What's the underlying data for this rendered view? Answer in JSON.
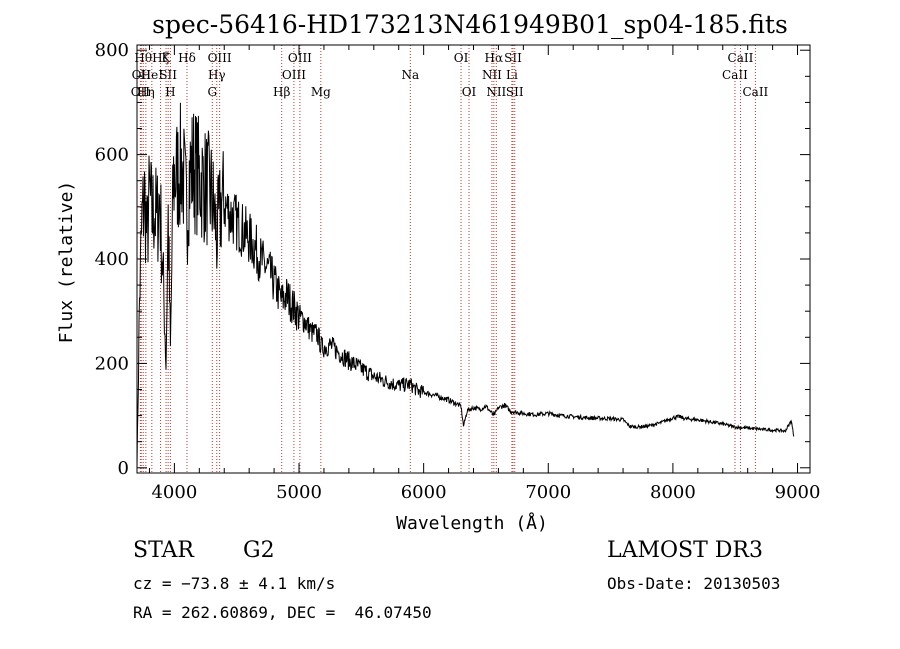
{
  "chart_data": {
    "type": "line",
    "title": "spec-56416-HD173213N461949B01_sp04-185.fits",
    "xlabel": "Wavelength (Å)",
    "ylabel": "Flux (relative)",
    "xlim": [
      3700,
      9100
    ],
    "ylim": [
      -10,
      810
    ],
    "xticks": [
      4000,
      5000,
      6000,
      7000,
      8000,
      9000
    ],
    "xtick_labels": [
      "4000",
      "5000",
      "6000",
      "7000",
      "8000",
      "9000"
    ],
    "yticks": [
      0,
      200,
      400,
      600,
      800
    ],
    "ytick_labels": [
      "0",
      "200",
      "400",
      "600",
      "800"
    ],
    "grid": false,
    "series": [
      {
        "name": "spectrum",
        "x": [
          3700,
          3720,
          3740,
          3760,
          3780,
          3800,
          3820,
          3840,
          3860,
          3880,
          3900,
          3920,
          3933,
          3950,
          3968,
          3990,
          4000,
          4020,
          4040,
          4060,
          4080,
          4101,
          4120,
          4150,
          4200,
          4250,
          4300,
          4330,
          4340,
          4380,
          4400,
          4450,
          4500,
          4550,
          4600,
          4650,
          4700,
          4750,
          4800,
          4861,
          4900,
          4950,
          5000,
          5050,
          5100,
          5150,
          5183,
          5250,
          5300,
          5400,
          5500,
          5600,
          5700,
          5800,
          5893,
          5950,
          6000,
          6100,
          6200,
          6250,
          6300,
          6320,
          6350,
          6400,
          6450,
          6500,
          6563,
          6600,
          6650,
          6700,
          6750,
          6800,
          6900,
          7000,
          7100,
          7200,
          7300,
          7400,
          7500,
          7600,
          7650,
          7700,
          7800,
          7900,
          8000,
          8050,
          8100,
          8200,
          8300,
          8400,
          8500,
          8600,
          8700,
          8800,
          8850,
          8900,
          8950,
          8970
        ],
        "y": [
          0,
          320,
          470,
          520,
          440,
          520,
          480,
          500,
          470,
          520,
          420,
          300,
          200,
          480,
          220,
          540,
          560,
          560,
          570,
          580,
          540,
          480,
          560,
          580,
          555,
          540,
          520,
          470,
          440,
          510,
          505,
          485,
          470,
          455,
          440,
          420,
          395,
          380,
          355,
          320,
          330,
          310,
          290,
          280,
          260,
          255,
          230,
          235,
          225,
          205,
          190,
          175,
          165,
          158,
          160,
          148,
          145,
          138,
          130,
          124,
          118,
          80,
          110,
          115,
          112,
          118,
          100,
          115,
          120,
          108,
          106,
          104,
          102,
          104,
          100,
          98,
          96,
          95,
          94,
          92,
          80,
          78,
          80,
          86,
          96,
          98,
          94,
          92,
          88,
          84,
          78,
          76,
          74,
          72,
          72,
          70,
          90,
          60
        ]
      }
    ],
    "lines": [
      {
        "wavelength": 3727,
        "label": "OII",
        "row": 2
      },
      {
        "wavelength": 3734,
        "label": "OII",
        "row": 1
      },
      {
        "wavelength": 3750,
        "label": "Hθ",
        "row": 0
      },
      {
        "wavelength": 3771,
        "label": "Hη",
        "row": 2
      },
      {
        "wavelength": 3819,
        "label": "HeI",
        "row": 1
      },
      {
        "wavelength": 3889,
        "label": "Hζ",
        "row": 0
      },
      {
        "wavelength": 3933,
        "label": "K",
        "row": 0
      },
      {
        "wavelength": 3950,
        "label": "SII",
        "row": 1
      },
      {
        "wavelength": 3968,
        "label": "H",
        "row": 2
      },
      {
        "wavelength": 4101,
        "label": "Hδ",
        "row": 0
      },
      {
        "wavelength": 4304,
        "label": "G",
        "row": 2
      },
      {
        "wavelength": 4340,
        "label": "Hγ",
        "row": 1
      },
      {
        "wavelength": 4363,
        "label": "OIII",
        "row": 0
      },
      {
        "wavelength": 4861,
        "label": "Hβ",
        "row": 2
      },
      {
        "wavelength": 4959,
        "label": "OIII",
        "row": 1
      },
      {
        "wavelength": 5007,
        "label": "OIII",
        "row": 0
      },
      {
        "wavelength": 5175,
        "label": "Mg",
        "row": 2
      },
      {
        "wavelength": 5893,
        "label": "Na",
        "row": 1
      },
      {
        "wavelength": 6300,
        "label": "OI",
        "row": 0
      },
      {
        "wavelength": 6364,
        "label": "OI",
        "row": 2
      },
      {
        "wavelength": 6548,
        "label": "NII",
        "row": 1
      },
      {
        "wavelength": 6563,
        "label": "Hα",
        "row": 0
      },
      {
        "wavelength": 6583,
        "label": "NII",
        "row": 2
      },
      {
        "wavelength": 6708,
        "label": "Li",
        "row": 1
      },
      {
        "wavelength": 6717,
        "label": "SII",
        "row": 0
      },
      {
        "wavelength": 6731,
        "label": "SII",
        "row": 2
      },
      {
        "wavelength": 8498,
        "label": "CaII",
        "row": 1
      },
      {
        "wavelength": 8542,
        "label": "CaII",
        "row": 0
      },
      {
        "wavelength": 8662,
        "label": "CaII",
        "row": 2
      }
    ]
  },
  "info": {
    "object_class": "STAR",
    "subclass": "G2",
    "survey": "LAMOST DR3",
    "cz": "cz = −73.8 ± 4.1 km/s",
    "obs_date": "Obs-Date: 20130503",
    "coords": "RA = 262.60869, DEC =  46.07450"
  },
  "colors": {
    "spectrum": "#000000",
    "line_markers": "#c0392b",
    "axes": "#000000"
  }
}
